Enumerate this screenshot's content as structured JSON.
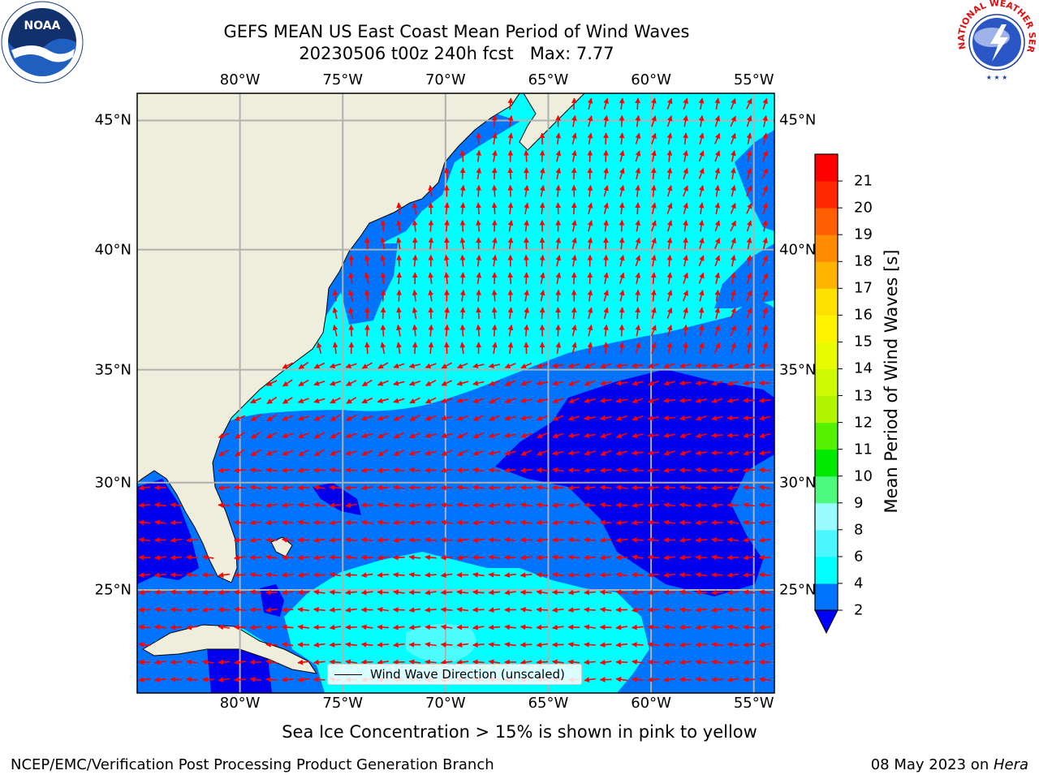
{
  "title": {
    "line1": "GEFS MEAN US East Coast Mean Period of Wind Waves",
    "line2": "20230506 t00z 240h fcst   Max: 7.77"
  },
  "map": {
    "lon_range": [
      -85,
      -54
    ],
    "lat_range": [
      20,
      46
    ],
    "gridlines": true,
    "lon_ticks": [
      {
        "value": -80,
        "label": "80°W"
      },
      {
        "value": -75,
        "label": "75°W"
      },
      {
        "value": -70,
        "label": "70°W"
      },
      {
        "value": -65,
        "label": "65°W"
      },
      {
        "value": -60,
        "label": "60°W"
      },
      {
        "value": -55,
        "label": "55°W"
      }
    ],
    "lat_ticks": [
      {
        "value": 45,
        "label": "45°N"
      },
      {
        "value": 40,
        "label": "40°N"
      },
      {
        "value": 35,
        "label": "35°N"
      },
      {
        "value": 30,
        "label": "30°N"
      },
      {
        "value": 25,
        "label": "25°N"
      }
    ],
    "colors": {
      "land": "#efeedc",
      "coast": "#000000",
      "grid": "#b0b0b0",
      "arrow": "#ff0000",
      "class_2_4": "#0073ff",
      "class_4_6": "#00ffff",
      "class_6_8": "#4dfcff",
      "below_2": "#0000ee"
    }
  },
  "colorbar": {
    "label": "Mean Period of Wind Waves [s]",
    "extend": "min",
    "ticks": [
      "2",
      "4",
      "6",
      "8",
      "9",
      "10",
      "11",
      "12",
      "13",
      "14",
      "15",
      "16",
      "17",
      "18",
      "19",
      "20",
      "21"
    ],
    "under_color": "#0000ff",
    "colors": [
      "#0073ff",
      "#00ffff",
      "#4cf8ff",
      "#9bfcff",
      "#4df97e",
      "#00e900",
      "#55f200",
      "#b2f500",
      "#cdfa00",
      "#e8fb00",
      "#fff300",
      "#ffe100",
      "#ffb500",
      "#ff8c00",
      "#ff5f00",
      "#ff2800",
      "#fe0000"
    ]
  },
  "legend": {
    "label": "Wind Wave Direction (unscaled)"
  },
  "footnote": "Sea Ice Concentration > 15% is shown in pink to yellow",
  "credit": "NCEP/EMC/Verification Post Processing Product Generation Branch",
  "date": {
    "text": "08 May 2023 on ",
    "machine": "Hera"
  },
  "logos": {
    "left": {
      "name": "noaa-logo",
      "text": "NOAA"
    },
    "right": {
      "name": "nws-logo",
      "text": "NATIONAL WEATHER SERVICE"
    }
  }
}
